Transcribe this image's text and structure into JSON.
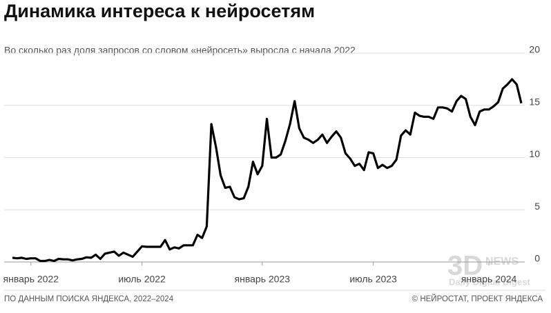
{
  "chart_data": {
    "type": "line",
    "title": "Динамика интереса к нейросетям",
    "subtitle": "Во сколько раз доля запросов со словом «нейросеть» выросла с начала 2022",
    "source": "ПО ДАННЫМ ПОИСКА ЯНДЕКСА, 2022–2024",
    "credit": "© НЕЙРОСТАТ, ПРОЕКТ ЯНДЕКСА",
    "watermark": [
      "3D",
      "NEWS",
      "Daily Digital Digest"
    ],
    "categories": [
      null,
      null,
      null,
      null,
      "январь 2022",
      null,
      null,
      null,
      null,
      null,
      null,
      null,
      null,
      null,
      null,
      null,
      null,
      null,
      null,
      null,
      null,
      null,
      null,
      null,
      null,
      null,
      null,
      null,
      "июль 2022",
      null,
      null,
      null,
      null,
      null,
      null,
      null,
      null,
      null,
      null,
      null,
      null,
      null,
      null,
      null,
      null,
      null,
      null,
      null,
      null,
      null,
      null,
      null,
      null,
      null,
      "январь 2023",
      null,
      null,
      null,
      null,
      null,
      null,
      null,
      null,
      null,
      null,
      null,
      null,
      null,
      null,
      null,
      null,
      null,
      null,
      null,
      null,
      null,
      null,
      null,
      "июль 2023",
      null,
      null,
      null,
      null,
      null,
      null,
      null,
      null,
      null,
      null,
      null,
      null,
      null,
      null,
      null,
      null,
      null,
      null,
      null,
      null,
      null,
      null,
      null,
      null,
      "январь 2024",
      null,
      null,
      null,
      null,
      null,
      null,
      null
    ],
    "series": [
      {
        "color": "#000000",
        "values": [
          0.4,
          0.35,
          0.4,
          0.3,
          0.35,
          0.35,
          0.1,
          0.1,
          0.2,
          0.1,
          0.3,
          0.25,
          0.25,
          0.15,
          0.25,
          0.3,
          0.45,
          0.4,
          0.7,
          0.3,
          0.8,
          0.9,
          1.0,
          0.6,
          0.9,
          0.7,
          0.5,
          1.0,
          1.5,
          1.45,
          1.45,
          1.45,
          1.45,
          2.1,
          1.2,
          1.4,
          1.3,
          1.6,
          1.6,
          1.6,
          2.6,
          2.3,
          3.4,
          13.2,
          11,
          8.3,
          7.1,
          7.2,
          6.2,
          6.0,
          6.1,
          7.2,
          9.6,
          8.4,
          9.2,
          13.7,
          10.0,
          10.0,
          10.3,
          11.6,
          13.2,
          15.4,
          12.8,
          11.9,
          11.7,
          11.4,
          11.7,
          12.2,
          11.4,
          12.0,
          12.5,
          11.9,
          10.4,
          9.9,
          9.2,
          9.4,
          8.8,
          10.5,
          10.4,
          9.0,
          9.3,
          9.0,
          9.2,
          9.8,
          12.1,
          12.6,
          12.2,
          14.3,
          14.0,
          13.9,
          13.9,
          13.7,
          14.8,
          14.8,
          14.7,
          14.4,
          15.4,
          15.9,
          15.6,
          13.9,
          13.1,
          14.4,
          14.6,
          14.6,
          14.9,
          15.3,
          16.6,
          17.0,
          17.5,
          17.0,
          15.2
        ]
      }
    ],
    "ylim": [
      0,
      20
    ],
    "yticks": [
      0,
      5,
      10,
      15,
      20
    ],
    "grid": true
  }
}
